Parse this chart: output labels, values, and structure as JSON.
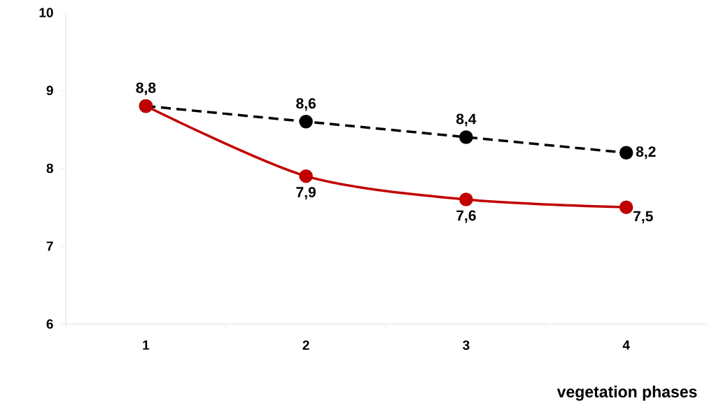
{
  "chart_data": {
    "type": "line",
    "xlabel": "vegetation phases",
    "categories": [
      "1",
      "2",
      "3",
      "4"
    ],
    "series": [
      {
        "color": "#000000",
        "line_style": "dashed",
        "values": [
          8.8,
          8.6,
          8.4,
          8.2
        ],
        "value_labels": [
          "8,8",
          "8,6",
          "8,4",
          "8,2"
        ]
      },
      {
        "color": "#c00000",
        "line_style": "solid",
        "values": [
          8.8,
          7.9,
          7.6,
          7.5
        ],
        "value_labels": [
          null,
          "7,9",
          "7,6",
          "7,5"
        ]
      }
    ],
    "ylim": [
      6,
      10
    ],
    "yticks": [
      6,
      7,
      8,
      9,
      10
    ],
    "grid": false,
    "marker": "circle"
  }
}
